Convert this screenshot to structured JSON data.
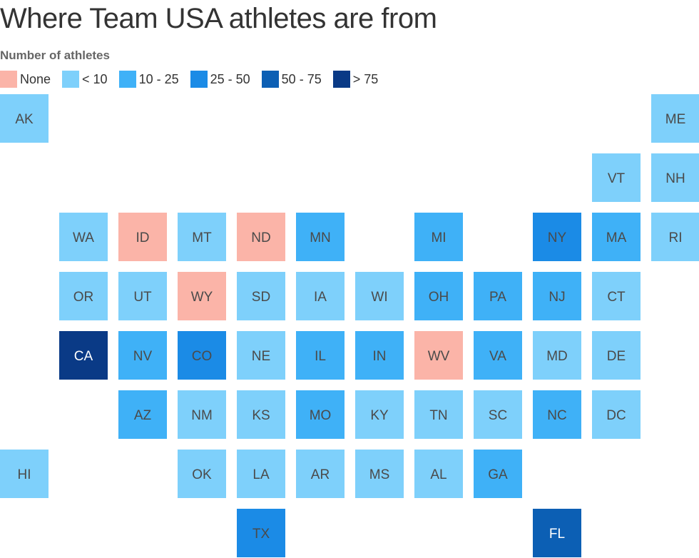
{
  "title": "Where Team USA athletes are from",
  "legend": {
    "title": "Number of athletes",
    "items": [
      {
        "label": "None",
        "color": "#fbb4a8"
      },
      {
        "label": "< 10",
        "color": "#7ed0fb"
      },
      {
        "label": "10 - 25",
        "color": "#3fb1f7"
      },
      {
        "label": "25 - 50",
        "color": "#1b8be6"
      },
      {
        "label": "50 - 75",
        "color": "#0c5fb4"
      },
      {
        "label": "> 75",
        "color": "#0a3a86"
      }
    ]
  },
  "chart_data": {
    "type": "heatmap",
    "title": "Where Team USA athletes are from",
    "legend_title": "Number of athletes",
    "bins": [
      "None",
      "< 10",
      "10 - 25",
      "25 - 50",
      "50 - 75",
      "> 75"
    ],
    "states": [
      {
        "abbr": "AK",
        "row": 0,
        "col": 0,
        "bin": "< 10"
      },
      {
        "abbr": "ME",
        "row": 0,
        "col": 11,
        "bin": "< 10"
      },
      {
        "abbr": "VT",
        "row": 1,
        "col": 10,
        "bin": "< 10"
      },
      {
        "abbr": "NH",
        "row": 1,
        "col": 11,
        "bin": "< 10"
      },
      {
        "abbr": "WA",
        "row": 2,
        "col": 1,
        "bin": "< 10"
      },
      {
        "abbr": "ID",
        "row": 2,
        "col": 2,
        "bin": "None"
      },
      {
        "abbr": "MT",
        "row": 2,
        "col": 3,
        "bin": "< 10"
      },
      {
        "abbr": "ND",
        "row": 2,
        "col": 4,
        "bin": "None"
      },
      {
        "abbr": "MN",
        "row": 2,
        "col": 5,
        "bin": "10 - 25"
      },
      {
        "abbr": "MI",
        "row": 2,
        "col": 7,
        "bin": "10 - 25"
      },
      {
        "abbr": "NY",
        "row": 2,
        "col": 9,
        "bin": "25 - 50"
      },
      {
        "abbr": "MA",
        "row": 2,
        "col": 10,
        "bin": "10 - 25"
      },
      {
        "abbr": "RI",
        "row": 2,
        "col": 11,
        "bin": "< 10"
      },
      {
        "abbr": "OR",
        "row": 3,
        "col": 1,
        "bin": "< 10"
      },
      {
        "abbr": "UT",
        "row": 3,
        "col": 2,
        "bin": "< 10"
      },
      {
        "abbr": "WY",
        "row": 3,
        "col": 3,
        "bin": "None"
      },
      {
        "abbr": "SD",
        "row": 3,
        "col": 4,
        "bin": "< 10"
      },
      {
        "abbr": "IA",
        "row": 3,
        "col": 5,
        "bin": "< 10"
      },
      {
        "abbr": "WI",
        "row": 3,
        "col": 6,
        "bin": "< 10"
      },
      {
        "abbr": "OH",
        "row": 3,
        "col": 7,
        "bin": "10 - 25"
      },
      {
        "abbr": "PA",
        "row": 3,
        "col": 8,
        "bin": "10 - 25"
      },
      {
        "abbr": "NJ",
        "row": 3,
        "col": 9,
        "bin": "10 - 25"
      },
      {
        "abbr": "CT",
        "row": 3,
        "col": 10,
        "bin": "< 10"
      },
      {
        "abbr": "CA",
        "row": 4,
        "col": 1,
        "bin": "> 75"
      },
      {
        "abbr": "NV",
        "row": 4,
        "col": 2,
        "bin": "10 - 25"
      },
      {
        "abbr": "CO",
        "row": 4,
        "col": 3,
        "bin": "25 - 50"
      },
      {
        "abbr": "NE",
        "row": 4,
        "col": 4,
        "bin": "< 10"
      },
      {
        "abbr": "IL",
        "row": 4,
        "col": 5,
        "bin": "10 - 25"
      },
      {
        "abbr": "IN",
        "row": 4,
        "col": 6,
        "bin": "10 - 25"
      },
      {
        "abbr": "WV",
        "row": 4,
        "col": 7,
        "bin": "None"
      },
      {
        "abbr": "VA",
        "row": 4,
        "col": 8,
        "bin": "10 - 25"
      },
      {
        "abbr": "MD",
        "row": 4,
        "col": 9,
        "bin": "< 10"
      },
      {
        "abbr": "DE",
        "row": 4,
        "col": 10,
        "bin": "< 10"
      },
      {
        "abbr": "AZ",
        "row": 5,
        "col": 2,
        "bin": "10 - 25"
      },
      {
        "abbr": "NM",
        "row": 5,
        "col": 3,
        "bin": "< 10"
      },
      {
        "abbr": "KS",
        "row": 5,
        "col": 4,
        "bin": "< 10"
      },
      {
        "abbr": "MO",
        "row": 5,
        "col": 5,
        "bin": "10 - 25"
      },
      {
        "abbr": "KY",
        "row": 5,
        "col": 6,
        "bin": "< 10"
      },
      {
        "abbr": "TN",
        "row": 5,
        "col": 7,
        "bin": "< 10"
      },
      {
        "abbr": "SC",
        "row": 5,
        "col": 8,
        "bin": "< 10"
      },
      {
        "abbr": "NC",
        "row": 5,
        "col": 9,
        "bin": "10 - 25"
      },
      {
        "abbr": "DC",
        "row": 5,
        "col": 10,
        "bin": "< 10"
      },
      {
        "abbr": "HI",
        "row": 6,
        "col": 0,
        "bin": "< 10"
      },
      {
        "abbr": "OK",
        "row": 6,
        "col": 3,
        "bin": "< 10"
      },
      {
        "abbr": "LA",
        "row": 6,
        "col": 4,
        "bin": "< 10"
      },
      {
        "abbr": "AR",
        "row": 6,
        "col": 5,
        "bin": "< 10"
      },
      {
        "abbr": "MS",
        "row": 6,
        "col": 6,
        "bin": "< 10"
      },
      {
        "abbr": "AL",
        "row": 6,
        "col": 7,
        "bin": "< 10"
      },
      {
        "abbr": "GA",
        "row": 6,
        "col": 8,
        "bin": "10 - 25"
      },
      {
        "abbr": "TX",
        "row": 7,
        "col": 4,
        "bin": "25 - 50"
      },
      {
        "abbr": "FL",
        "row": 7,
        "col": 9,
        "bin": "50 - 75"
      }
    ]
  }
}
